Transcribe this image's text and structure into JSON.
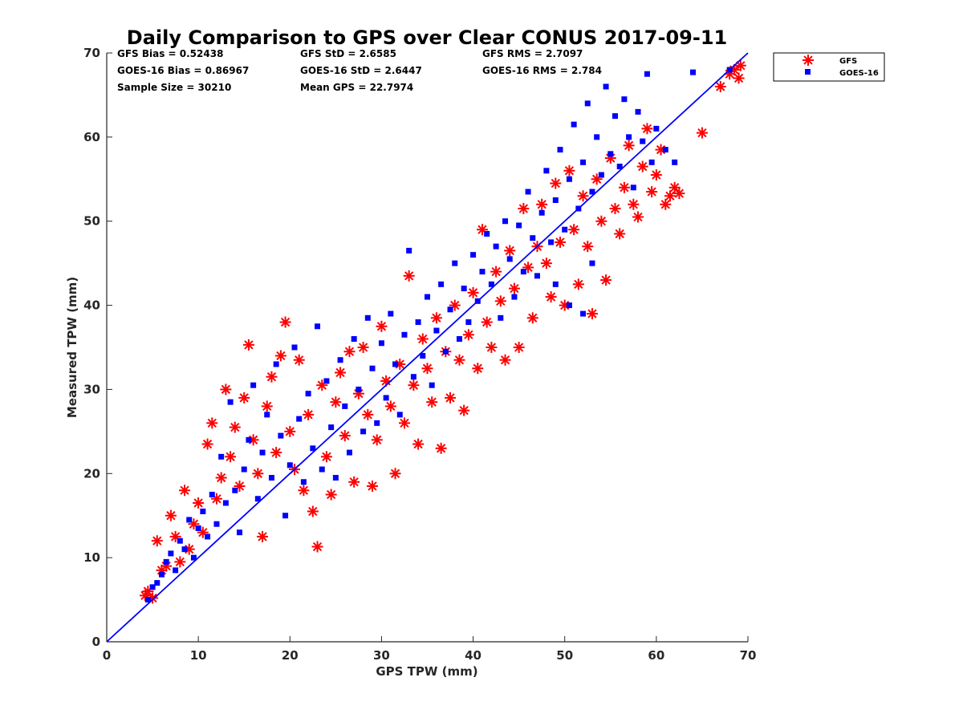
{
  "chart_data": {
    "type": "scatter",
    "title": "Daily Comparison to GPS over Clear CONUS 2017-09-11",
    "xlabel": "GPS TPW (mm)",
    "ylabel": "Measured TPW (mm)",
    "xlim": [
      0,
      70
    ],
    "ylim": [
      0,
      70
    ],
    "xticks": [
      "0",
      "10",
      "20",
      "30",
      "40",
      "50",
      "60",
      "70"
    ],
    "yticks": [
      "0",
      "10",
      "20",
      "30",
      "40",
      "50",
      "60",
      "70"
    ],
    "grid": false,
    "legend_location": "outside top-right",
    "stats": [
      [
        "GFS Bias = 0.52438",
        "GFS StD = 2.6585",
        "GFS RMS = 2.7097"
      ],
      [
        "GOES-16 Bias = 0.86967",
        "GOES-16 StD = 2.6447",
        "GOES-16 RMS = 2.784"
      ],
      [
        "Sample Size = 30210",
        "Mean GPS = 22.7974",
        ""
      ]
    ],
    "reference_line": {
      "name": "1:1 line",
      "x": [
        0,
        70
      ],
      "y": [
        0,
        70
      ],
      "color": "#0000ff"
    },
    "series": [
      {
        "name": "GFS",
        "marker": "asterisk",
        "color": "#ff0000",
        "points": [
          [
            4.2,
            5.5
          ],
          [
            4.5,
            6.0
          ],
          [
            5.0,
            5.2
          ],
          [
            5.5,
            12.0
          ],
          [
            6.0,
            8.5
          ],
          [
            6.5,
            9.0
          ],
          [
            7.0,
            15.0
          ],
          [
            7.5,
            12.5
          ],
          [
            8.0,
            9.5
          ],
          [
            8.5,
            18.0
          ],
          [
            9.0,
            11.0
          ],
          [
            9.5,
            14.0
          ],
          [
            10.0,
            16.5
          ],
          [
            10.5,
            13.0
          ],
          [
            11.0,
            23.5
          ],
          [
            11.5,
            26.0
          ],
          [
            12.0,
            17.0
          ],
          [
            12.5,
            19.5
          ],
          [
            13.0,
            30.0
          ],
          [
            13.5,
            22.0
          ],
          [
            14.0,
            25.5
          ],
          [
            14.5,
            18.5
          ],
          [
            15.0,
            29.0
          ],
          [
            15.5,
            35.3
          ],
          [
            16.0,
            24.0
          ],
          [
            16.5,
            20.0
          ],
          [
            17.0,
            12.5
          ],
          [
            17.5,
            28.0
          ],
          [
            18.0,
            31.5
          ],
          [
            18.5,
            22.5
          ],
          [
            19.0,
            34.0
          ],
          [
            19.5,
            38.0
          ],
          [
            20.0,
            25.0
          ],
          [
            20.5,
            20.5
          ],
          [
            21.0,
            33.5
          ],
          [
            21.5,
            18.0
          ],
          [
            22.0,
            27.0
          ],
          [
            22.5,
            15.5
          ],
          [
            23.0,
            11.3
          ],
          [
            23.5,
            30.5
          ],
          [
            24.0,
            22.0
          ],
          [
            24.5,
            17.5
          ],
          [
            25.0,
            28.5
          ],
          [
            25.5,
            32.0
          ],
          [
            26.0,
            24.5
          ],
          [
            26.5,
            34.5
          ],
          [
            27.0,
            19.0
          ],
          [
            27.5,
            29.5
          ],
          [
            28.0,
            35.0
          ],
          [
            28.5,
            27.0
          ],
          [
            29.0,
            18.5
          ],
          [
            29.5,
            24.0
          ],
          [
            30.0,
            37.5
          ],
          [
            30.5,
            31.0
          ],
          [
            31.0,
            28.0
          ],
          [
            31.5,
            20.0
          ],
          [
            32.0,
            33.0
          ],
          [
            32.5,
            26.0
          ],
          [
            33.0,
            43.5
          ],
          [
            33.5,
            30.5
          ],
          [
            34.0,
            23.5
          ],
          [
            34.5,
            36.0
          ],
          [
            35.0,
            32.5
          ],
          [
            35.5,
            28.5
          ],
          [
            36.0,
            38.5
          ],
          [
            36.5,
            23.0
          ],
          [
            37.0,
            34.5
          ],
          [
            37.5,
            29.0
          ],
          [
            38.0,
            40.0
          ],
          [
            38.5,
            33.5
          ],
          [
            39.0,
            27.5
          ],
          [
            39.5,
            36.5
          ],
          [
            40.0,
            41.5
          ],
          [
            40.5,
            32.5
          ],
          [
            41.0,
            49.0
          ],
          [
            41.5,
            38.0
          ],
          [
            42.0,
            35.0
          ],
          [
            42.5,
            44.0
          ],
          [
            43.0,
            40.5
          ],
          [
            43.5,
            33.5
          ],
          [
            44.0,
            46.5
          ],
          [
            44.5,
            42.0
          ],
          [
            45.0,
            35.0
          ],
          [
            45.5,
            51.5
          ],
          [
            46.0,
            44.5
          ],
          [
            46.5,
            38.5
          ],
          [
            47.0,
            47.0
          ],
          [
            47.5,
            52.0
          ],
          [
            48.0,
            45.0
          ],
          [
            48.5,
            41.0
          ],
          [
            49.0,
            54.5
          ],
          [
            49.5,
            47.5
          ],
          [
            50.0,
            40.0
          ],
          [
            50.5,
            56.0
          ],
          [
            51.0,
            49.0
          ],
          [
            51.5,
            42.5
          ],
          [
            52.0,
            53.0
          ],
          [
            52.5,
            47.0
          ],
          [
            53.0,
            39.0
          ],
          [
            53.5,
            55.0
          ],
          [
            54.0,
            50.0
          ],
          [
            54.5,
            43.0
          ],
          [
            55.0,
            57.5
          ],
          [
            55.5,
            51.5
          ],
          [
            56.0,
            48.5
          ],
          [
            56.5,
            54.0
          ],
          [
            57.0,
            59.0
          ],
          [
            57.5,
            52.0
          ],
          [
            58.0,
            50.5
          ],
          [
            58.5,
            56.5
          ],
          [
            59.0,
            61.0
          ],
          [
            59.5,
            53.5
          ],
          [
            60.0,
            55.5
          ],
          [
            60.5,
            58.5
          ],
          [
            61.0,
            52.0
          ],
          [
            61.5,
            53.0
          ],
          [
            62.0,
            54.0
          ],
          [
            62.5,
            53.3
          ],
          [
            65.0,
            60.5
          ],
          [
            67.0,
            66.0
          ],
          [
            68.0,
            67.5
          ],
          [
            68.5,
            68.0
          ],
          [
            69.0,
            67.0
          ],
          [
            69.2,
            68.5
          ]
        ]
      },
      {
        "name": "GOES-16",
        "marker": "square",
        "color": "#0000ff",
        "points": [
          [
            4.5,
            5.0
          ],
          [
            5.0,
            6.5
          ],
          [
            5.5,
            7.0
          ],
          [
            6.0,
            8.0
          ],
          [
            6.5,
            9.5
          ],
          [
            7.0,
            10.5
          ],
          [
            7.5,
            8.5
          ],
          [
            8.0,
            12.0
          ],
          [
            8.5,
            11.0
          ],
          [
            9.0,
            14.5
          ],
          [
            9.5,
            10.0
          ],
          [
            10.0,
            13.5
          ],
          [
            10.5,
            15.5
          ],
          [
            11.0,
            12.5
          ],
          [
            11.5,
            17.5
          ],
          [
            12.0,
            14.0
          ],
          [
            12.5,
            22.0
          ],
          [
            13.0,
            16.5
          ],
          [
            13.5,
            28.5
          ],
          [
            14.0,
            18.0
          ],
          [
            14.5,
            13.0
          ],
          [
            15.0,
            20.5
          ],
          [
            15.5,
            24.0
          ],
          [
            16.0,
            30.5
          ],
          [
            16.5,
            17.0
          ],
          [
            17.0,
            22.5
          ],
          [
            17.5,
            27.0
          ],
          [
            18.0,
            19.5
          ],
          [
            18.5,
            33.0
          ],
          [
            19.0,
            24.5
          ],
          [
            19.5,
            15.0
          ],
          [
            20.0,
            21.0
          ],
          [
            20.5,
            35.0
          ],
          [
            21.0,
            26.5
          ],
          [
            21.5,
            19.0
          ],
          [
            22.0,
            29.5
          ],
          [
            22.5,
            23.0
          ],
          [
            23.0,
            37.5
          ],
          [
            23.5,
            20.5
          ],
          [
            24.0,
            31.0
          ],
          [
            24.5,
            25.5
          ],
          [
            25.0,
            19.5
          ],
          [
            25.5,
            33.5
          ],
          [
            26.0,
            28.0
          ],
          [
            26.5,
            22.5
          ],
          [
            27.0,
            36.0
          ],
          [
            27.5,
            30.0
          ],
          [
            28.0,
            25.0
          ],
          [
            28.5,
            38.5
          ],
          [
            29.0,
            32.5
          ],
          [
            29.5,
            26.0
          ],
          [
            30.0,
            35.5
          ],
          [
            30.5,
            29.0
          ],
          [
            31.0,
            39.0
          ],
          [
            31.5,
            33.0
          ],
          [
            32.0,
            27.0
          ],
          [
            32.5,
            36.5
          ],
          [
            33.0,
            46.5
          ],
          [
            33.5,
            31.5
          ],
          [
            34.0,
            38.0
          ],
          [
            34.5,
            34.0
          ],
          [
            35.0,
            41.0
          ],
          [
            35.5,
            30.5
          ],
          [
            36.0,
            37.0
          ],
          [
            36.5,
            42.5
          ],
          [
            37.0,
            34.5
          ],
          [
            37.5,
            39.5
          ],
          [
            38.0,
            45.0
          ],
          [
            38.5,
            36.0
          ],
          [
            39.0,
            42.0
          ],
          [
            39.5,
            38.0
          ],
          [
            40.0,
            46.0
          ],
          [
            40.5,
            40.5
          ],
          [
            41.0,
            44.0
          ],
          [
            41.5,
            48.5
          ],
          [
            42.0,
            42.5
          ],
          [
            42.5,
            47.0
          ],
          [
            43.0,
            38.5
          ],
          [
            43.5,
            50.0
          ],
          [
            44.0,
            45.5
          ],
          [
            44.5,
            41.0
          ],
          [
            45.0,
            49.5
          ],
          [
            45.5,
            44.0
          ],
          [
            46.0,
            53.5
          ],
          [
            46.5,
            48.0
          ],
          [
            47.0,
            43.5
          ],
          [
            47.5,
            51.0
          ],
          [
            48.0,
            56.0
          ],
          [
            48.5,
            47.5
          ],
          [
            49.0,
            52.5
          ],
          [
            49.5,
            58.5
          ],
          [
            50.0,
            49.0
          ],
          [
            50.5,
            55.0
          ],
          [
            51.0,
            61.5
          ],
          [
            51.5,
            51.5
          ],
          [
            52.0,
            57.0
          ],
          [
            52.5,
            64.0
          ],
          [
            53.0,
            53.5
          ],
          [
            53.5,
            60.0
          ],
          [
            54.0,
            55.5
          ],
          [
            54.5,
            66.0
          ],
          [
            55.0,
            58.0
          ],
          [
            55.5,
            62.5
          ],
          [
            56.0,
            56.5
          ],
          [
            56.5,
            64.5
          ],
          [
            57.0,
            60.0
          ],
          [
            57.5,
            54.0
          ],
          [
            58.0,
            63.0
          ],
          [
            58.5,
            59.5
          ],
          [
            59.0,
            67.5
          ],
          [
            59.5,
            57.0
          ],
          [
            60.0,
            61.0
          ],
          [
            61.0,
            58.5
          ],
          [
            62.0,
            57.0
          ],
          [
            64.0,
            67.7
          ],
          [
            68.0,
            68.0
          ],
          [
            52.0,
            39.0
          ],
          [
            50.5,
            40.0
          ],
          [
            49.0,
            42.5
          ],
          [
            53.0,
            45.0
          ]
        ]
      }
    ]
  }
}
